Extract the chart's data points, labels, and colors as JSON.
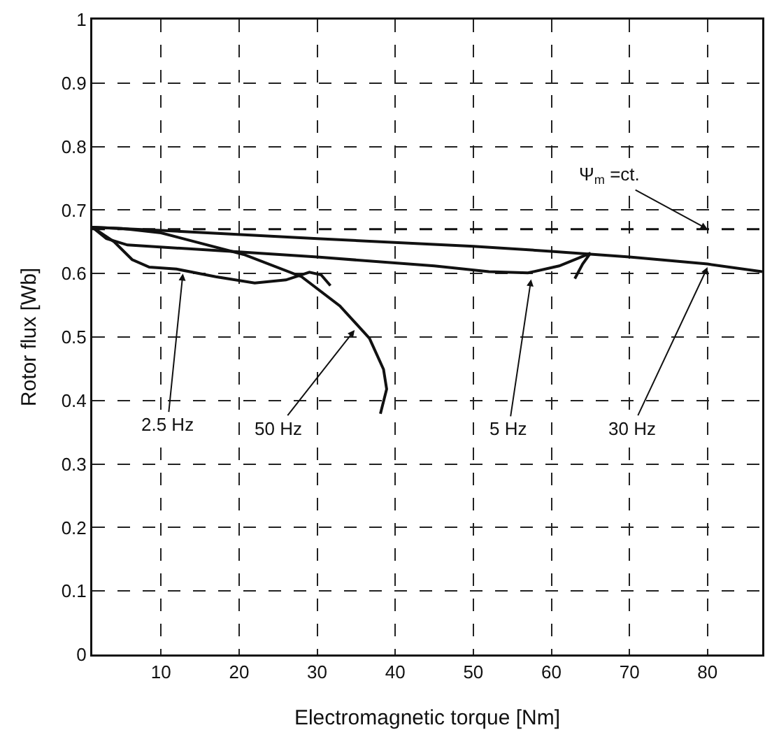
{
  "chart_data": {
    "type": "line",
    "xlabel": "Electromagnetic torque [Nm]",
    "ylabel": "Rotor flux [Wb]",
    "xlim": [
      1.2,
      87
    ],
    "ylim": [
      0,
      1
    ],
    "xticks": [
      10,
      20,
      30,
      40,
      50,
      60,
      70,
      80
    ],
    "yticks": [
      0,
      0.1,
      0.2,
      0.3,
      0.4,
      0.5,
      0.6,
      0.7,
      0.8,
      0.9,
      1
    ],
    "grid": true,
    "marker": "none",
    "line_style": "solid",
    "series": [
      {
        "color": "#111111",
        "x": [
          1.2,
          4,
          6.3,
          8.5,
          12,
          17,
          22,
          26,
          29,
          30.5,
          31.7
        ],
        "values": [
          0.673,
          0.65,
          0.622,
          0.61,
          0.607,
          0.595,
          0.585,
          0.59,
          0.602,
          0.598,
          0.581
        ]
      },
      {
        "color": "#111111",
        "x": [
          1.2,
          5,
          10,
          15,
          20.6,
          28,
          32.9,
          36.7,
          38.5,
          38.9,
          38.1
        ],
        "values": [
          0.673,
          0.671,
          0.664,
          0.648,
          0.63,
          0.595,
          0.549,
          0.498,
          0.449,
          0.418,
          0.379
        ]
      },
      {
        "color": "#111111",
        "x": [
          1.2,
          3,
          5.7,
          20,
          30,
          45,
          52,
          57,
          61,
          65,
          64,
          63
        ],
        "values": [
          0.673,
          0.655,
          0.645,
          0.634,
          0.626,
          0.612,
          0.603,
          0.601,
          0.612,
          0.632,
          0.615,
          0.592
        ]
      },
      {
        "color": "#111111",
        "x": [
          1.2,
          10,
          30,
          50,
          60,
          70,
          80,
          87
        ],
        "values": [
          0.673,
          0.668,
          0.655,
          0.643,
          0.635,
          0.626,
          0.615,
          0.603
        ]
      }
    ],
    "ref_lines": [
      {
        "axis": "y",
        "value": 0.67,
        "label": "Ψ$_{m}$ =ct.",
        "line_style": "dashed",
        "color": "#111111"
      }
    ],
    "annotations": [
      {
        "text": "2.5 Hz",
        "x": 12.8,
        "y": 0.6
      },
      {
        "text": "50 Hz",
        "x": 34.8,
        "y": 0.511
      },
      {
        "text": "5 Hz",
        "x": 57.4,
        "y": 0.591
      },
      {
        "text": "30 Hz",
        "x": 80,
        "y": 0.61
      }
    ]
  }
}
